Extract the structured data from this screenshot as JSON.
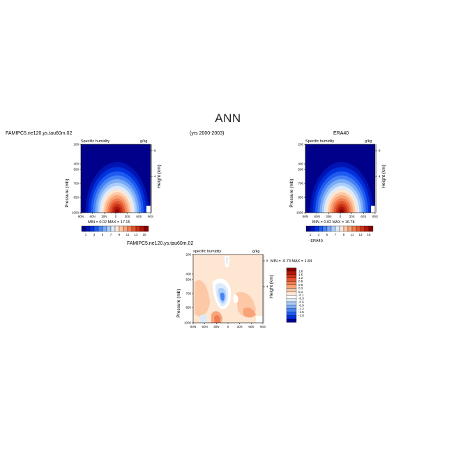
{
  "title": "ANN",
  "top_header": {
    "left": "FAMIPC5.ne120.ys.tau60m.02",
    "center": "(yrs 2000-2003)",
    "right": "ERA40"
  },
  "panels": [
    {
      "id": "model",
      "subtitle_left": "Specific humidity",
      "subtitle_right": "g/kg",
      "min_max": "MIN =   0.02    MAX =  17.15",
      "caption": ""
    },
    {
      "id": "obs",
      "subtitle_left": "Specific humidity",
      "subtitle_right": "g/kg",
      "min_max": "MIN =   0.02    MAX =  16.78",
      "caption": ""
    },
    {
      "id": "diff",
      "top_label": "FAMIPC5.ne120.ys.tau60m.02",
      "subtitle_left": "specific humidity",
      "subtitle_right": "g/kg",
      "min_max": "MIN =  -0.73    MAX =   1.84",
      "caption": "- ERA40"
    }
  ],
  "axes": {
    "ylabel": "Pressure (mb)",
    "ylabel_right": "Height (km)",
    "y_ticks": [
      "200",
      "400",
      "500",
      "700",
      "850",
      "1000"
    ],
    "x_ticks": [
      "90N",
      "60N",
      "30N",
      "0",
      "30S",
      "60S",
      "90S"
    ],
    "height_ticks": [
      "8",
      "4"
    ]
  },
  "colorbar_main": {
    "labels": [
      "1",
      "3",
      "5",
      "7",
      "9",
      "11",
      "13",
      "15"
    ],
    "colors": [
      "#00008b",
      "#0014b4",
      "#0032dc",
      "#1e5af0",
      "#4682f5",
      "#78aaf8",
      "#aacdfa",
      "#dcebfc",
      "#fde6d2",
      "#fcc8a5",
      "#f8a478",
      "#f07e52",
      "#e4562e",
      "#cc3418",
      "#b01808",
      "#8a0000"
    ]
  },
  "colorbar_diff": {
    "labels": [
      "1.8",
      "1.5",
      "1.2",
      "0.9",
      "0.6",
      "0.3",
      "0.1",
      "-0.1",
      "-0.3",
      "-0.6",
      "-0.9",
      "-1.2",
      "-1.5",
      "-1.8"
    ],
    "colors": [
      "#8a0000",
      "#b01808",
      "#cc3418",
      "#e4562e",
      "#f07e52",
      "#f8a478",
      "#fcc8a5",
      "#fde6d2",
      "#ffffff",
      "#dcebfc",
      "#aacdfa",
      "#78aaf8",
      "#4682f5",
      "#1e5af0",
      "#0032dc",
      "#00008b"
    ]
  },
  "chart_data": [
    {
      "type": "heatmap",
      "panel": "model",
      "title": "Specific humidity",
      "ylabel": "Pressure (mb)",
      "ylabel_right": "Height (km)",
      "x_categories": [
        "90N",
        "60N",
        "30N",
        "0",
        "30S",
        "60S",
        "90S"
      ],
      "y_categories": [
        "200",
        "400",
        "500",
        "700",
        "850",
        "1000"
      ],
      "units": "g/kg",
      "min": 0.02,
      "max": 17.15
    },
    {
      "type": "heatmap",
      "panel": "obs",
      "title": "Specific humidity",
      "ylabel": "Pressure (mb)",
      "ylabel_right": "Height (km)",
      "x_categories": [
        "90N",
        "60N",
        "30N",
        "0",
        "30S",
        "60S",
        "90S"
      ],
      "y_categories": [
        "200",
        "400",
        "500",
        "700",
        "850",
        "1000"
      ],
      "units": "g/kg",
      "min": 0.02,
      "max": 16.78
    },
    {
      "type": "heatmap",
      "panel": "diff",
      "title": "specific humidity",
      "ylabel": "Pressure (mb)",
      "ylabel_right": "Height (km)",
      "x_categories": [
        "90N",
        "60N",
        "30N",
        "0",
        "30S",
        "60S",
        "90S"
      ],
      "y_categories": [
        "200",
        "400",
        "500",
        "700",
        "850",
        "1000"
      ],
      "units": "g/kg",
      "min": -0.73,
      "max": 1.84
    }
  ]
}
